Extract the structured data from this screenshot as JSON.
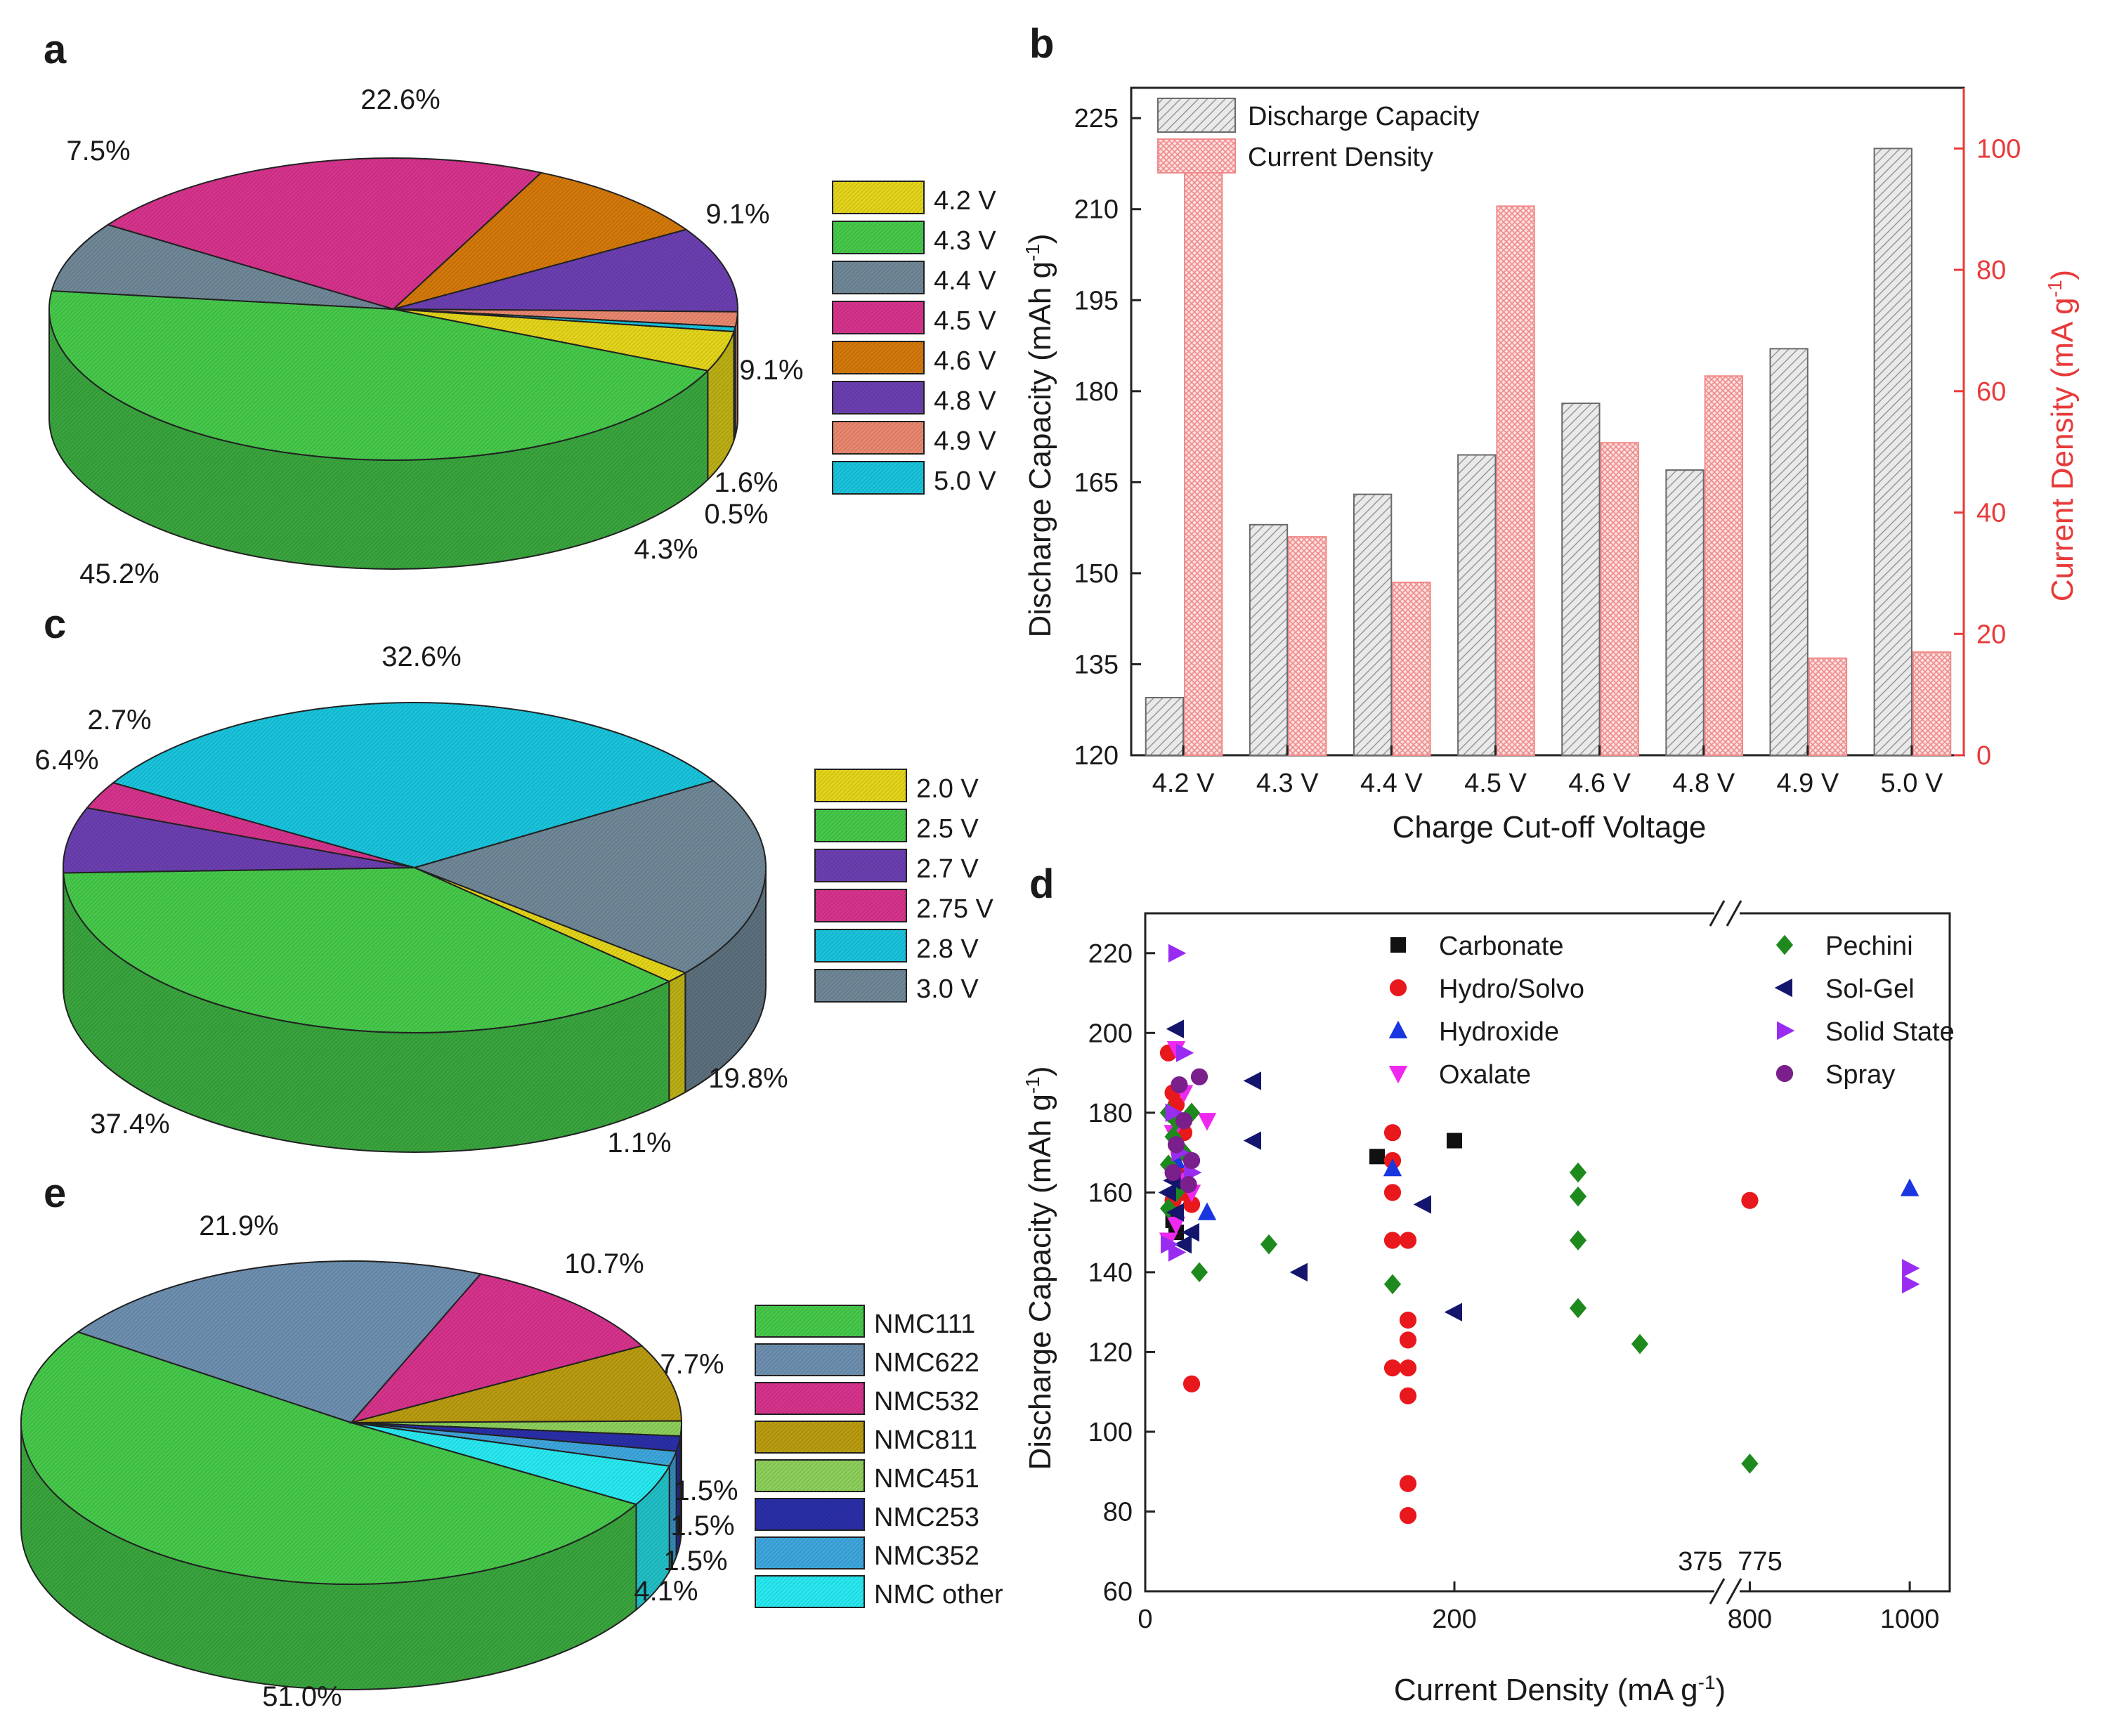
{
  "colors": {
    "green": "#46c84a",
    "slate": "#6f8797",
    "magenta": "#d6338c",
    "orange": "#d3780a",
    "purple": "#6b3fb0",
    "salmon": "#e8876e",
    "cyan": "#19c3dc",
    "yellow": "#e3d41a",
    "steel": "#6d8faf",
    "olive": "#b89b10",
    "lightgreen": "#8ccf5a",
    "navy": "#2a2fa8",
    "skyblue": "#3ea6dc",
    "aqua": "#28e8f0",
    "red": "#e8181c",
    "black": "#111111",
    "blue": "#1a36e0",
    "pinkviolet": "#ee28ee",
    "violet": "#9a2cf2",
    "darkpurple": "#7a1f8c",
    "darkgreen": "#1e8a1e",
    "darknavy": "#14166e",
    "redaxis": "#e83a3a"
  },
  "chart_data": [
    {
      "panel": "a",
      "type": "pie",
      "labels": [
        "4.3 V",
        "4.4 V",
        "4.5 V",
        "4.6 V",
        "4.8 V",
        "4.9 V",
        "5.0 V",
        "4.2 V"
      ],
      "values": [
        45.2,
        7.5,
        22.6,
        9.1,
        9.1,
        1.6,
        0.5,
        4.3
      ],
      "value_labels": [
        "45.2%",
        "7.5%",
        "22.6%",
        "9.1%",
        "9.1%",
        "1.6%",
        "0.5%",
        "4.3%"
      ],
      "legend": [
        "4.2 V",
        "4.3 V",
        "4.4 V",
        "4.5 V",
        "4.6 V",
        "4.8 V",
        "4.9 V",
        "5.0 V"
      ]
    },
    {
      "panel": "b",
      "type": "bar",
      "categories": [
        "4.2 V",
        "4.3 V",
        "4.4 V",
        "4.5 V",
        "4.6 V",
        "4.8 V",
        "4.9 V",
        "5.0 V"
      ],
      "series": [
        {
          "name": "Discharge Capacity",
          "axis": "left",
          "values": [
            129.5,
            158,
            163,
            169.5,
            178,
            167,
            187,
            220
          ]
        },
        {
          "name": "Current Density",
          "axis": "right",
          "values": [
            96,
            36,
            28.5,
            90.5,
            51.5,
            62.5,
            16,
            17
          ]
        }
      ],
      "xlabel": "Charge Cut-off Voltage",
      "ylabel": "Discharge Capacity (mAh g",
      "ylabel_sup": "-1",
      "ylabel_end": ")",
      "y2label": "Current Density (mA g",
      "y2label_sup": "-1",
      "y2label_end": ")",
      "ylim": [
        120,
        230
      ],
      "y2lim": [
        0,
        110
      ],
      "yticks": [
        120,
        135,
        150,
        165,
        180,
        195,
        210,
        225
      ],
      "y2ticks": [
        0,
        20,
        40,
        60,
        80,
        100
      ],
      "legend_position": "top-left"
    },
    {
      "panel": "c",
      "type": "pie",
      "labels": [
        "2.5 V",
        "2.7 V",
        "2.75 V",
        "2.8 V",
        "3.0 V",
        "2.0 V"
      ],
      "values": [
        37.4,
        6.4,
        2.7,
        32.6,
        19.8,
        1.1
      ],
      "value_labels": [
        "37.4%",
        "6.4%",
        "2.7%",
        "32.6%",
        "19.8%",
        "1.1%"
      ],
      "legend": [
        "2.0 V",
        "2.5 V",
        "2.7 V",
        "2.75 V",
        "2.8 V",
        "3.0 V"
      ]
    },
    {
      "panel": "d",
      "type": "scatter",
      "xlabel": "Current Density (mA g",
      "xlabel_sup": "-1",
      "xlabel_end": ")",
      "ylabel": "Discharge Capacity (mAh g",
      "ylabel_sup": "-1",
      "ylabel_end": ")",
      "ylim": [
        60,
        230
      ],
      "yticks": [
        60,
        80,
        100,
        120,
        140,
        160,
        180,
        200,
        220
      ],
      "xticks": [
        "0",
        "200",
        "800",
        "1000"
      ],
      "xbreak": {
        "from": 375,
        "to": 775,
        "label_from": "375",
        "label_to": "775"
      },
      "series": [
        {
          "name": "Carbonate",
          "points": [
            [
              150,
              169
            ],
            [
              200,
              173
            ],
            [
              18,
              153
            ],
            [
              20,
              150
            ]
          ]
        },
        {
          "name": "Hydro/Solvo",
          "points": [
            [
              15,
              195
            ],
            [
              18,
              185
            ],
            [
              20,
              182
            ],
            [
              22,
              170
            ],
            [
              25,
              160
            ],
            [
              18,
              158
            ],
            [
              30,
              157
            ],
            [
              30,
              112
            ],
            [
              160,
              175
            ],
            [
              160,
              168
            ],
            [
              160,
              160
            ],
            [
              160,
              148
            ],
            [
              170,
              148
            ],
            [
              160,
              116
            ],
            [
              170,
              116
            ],
            [
              170,
              128
            ],
            [
              170,
              123
            ],
            [
              170,
              109
            ],
            [
              170,
              87
            ],
            [
              170,
              79
            ],
            [
              800,
              158
            ],
            [
              20,
              165
            ],
            [
              25,
              175
            ]
          ]
        },
        {
          "name": "Hydroxide",
          "points": [
            [
              160,
              166
            ],
            [
              40,
              155
            ],
            [
              1000,
              161
            ],
            [
              20,
              168
            ],
            [
              25,
              163
            ]
          ]
        },
        {
          "name": "Oxalate",
          "points": [
            [
              20,
              196
            ],
            [
              25,
              185
            ],
            [
              18,
              175
            ],
            [
              22,
              163
            ],
            [
              30,
              160
            ],
            [
              40,
              178
            ],
            [
              15,
              148
            ],
            [
              20,
              152
            ]
          ]
        },
        {
          "name": "Pechini",
          "points": [
            [
              15,
              180
            ],
            [
              20,
              178
            ],
            [
              30,
              180
            ],
            [
              18,
              174
            ],
            [
              15,
              167
            ],
            [
              20,
              160
            ],
            [
              35,
              140
            ],
            [
              80,
              147
            ],
            [
              160,
              137
            ],
            [
              280,
              165
            ],
            [
              280,
              159
            ],
            [
              280,
              148
            ],
            [
              280,
              131
            ],
            [
              320,
              122
            ],
            [
              800,
              92
            ],
            [
              25,
              170
            ],
            [
              15,
              156
            ]
          ]
        },
        {
          "name": "Sol-Gel",
          "points": [
            [
              20,
              201
            ],
            [
              70,
              188
            ],
            [
              70,
              173
            ],
            [
              100,
              140
            ],
            [
              180,
              157
            ],
            [
              200,
              130
            ],
            [
              15,
              160
            ],
            [
              20,
              155
            ],
            [
              30,
              150
            ],
            [
              25,
              147
            ],
            [
              18,
              163
            ]
          ]
        },
        {
          "name": "Solid State",
          "points": [
            [
              20,
              220
            ],
            [
              25,
              195
            ],
            [
              18,
              180
            ],
            [
              22,
              170
            ],
            [
              15,
              147
            ],
            [
              1000,
              141
            ],
            [
              1000,
              137
            ],
            [
              30,
              165
            ],
            [
              20,
              145
            ]
          ]
        },
        {
          "name": "Spray",
          "points": [
            [
              35,
              189
            ],
            [
              22,
              187
            ],
            [
              25,
              178
            ],
            [
              20,
              172
            ],
            [
              30,
              168
            ],
            [
              28,
              162
            ],
            [
              18,
              165
            ]
          ]
        }
      ],
      "legend_position": "top"
    },
    {
      "panel": "e",
      "type": "pie",
      "labels": [
        "NMC111",
        "NMC622",
        "NMC532",
        "NMC811",
        "NMC451",
        "NMC253",
        "NMC352",
        "NMC other"
      ],
      "values": [
        51.0,
        21.9,
        10.7,
        7.7,
        1.5,
        1.5,
        1.5,
        4.1
      ],
      "value_labels": [
        "51.0%",
        "21.9%",
        "10.7%",
        "7.7%",
        "1.5%",
        "1.5%",
        "1.5%",
        "4.1%"
      ],
      "legend": [
        "NMC111",
        "NMC622",
        "NMC532",
        "NMC811",
        "NMC451",
        "NMC253",
        "NMC352",
        "NMC other"
      ]
    }
  ]
}
